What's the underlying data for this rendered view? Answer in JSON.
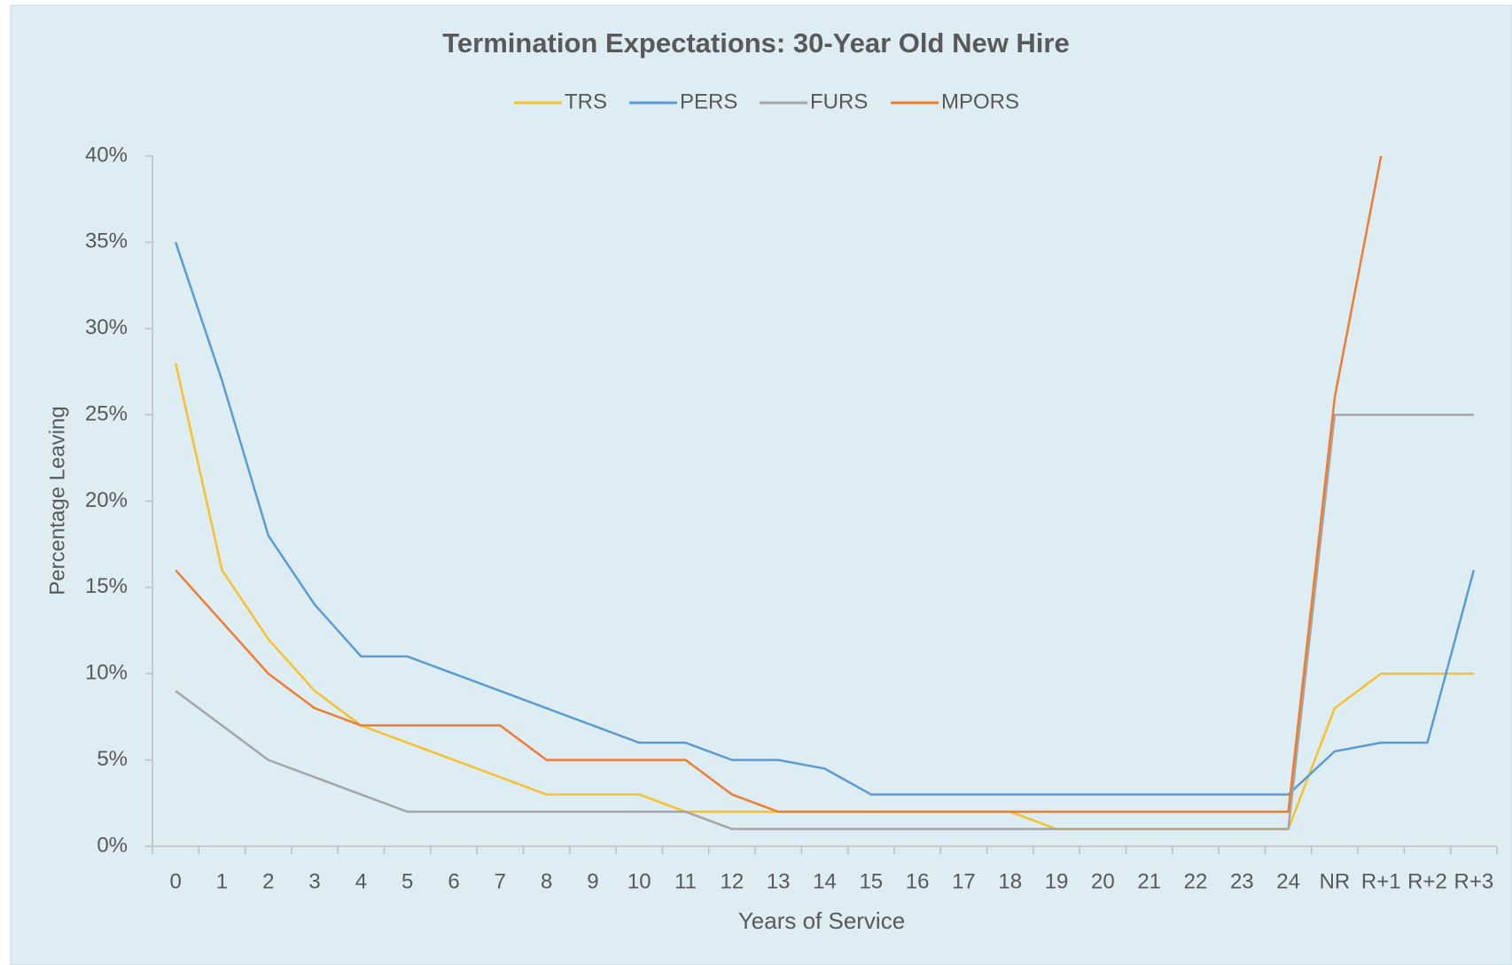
{
  "chart_data": {
    "type": "line",
    "title": "Termination Expectations:  30-Year Old New Hire",
    "x_label": "Years of Service",
    "y_label": "Percentage Leaving",
    "categories": [
      "0",
      "1",
      "2",
      "3",
      "4",
      "5",
      "6",
      "7",
      "8",
      "9",
      "10",
      "11",
      "12",
      "13",
      "14",
      "15",
      "16",
      "17",
      "18",
      "19",
      "20",
      "21",
      "22",
      "23",
      "24",
      "NR",
      "R+1",
      "R+2",
      "R+3"
    ],
    "series": [
      {
        "name": "TRS",
        "color": "#f5c12e",
        "values": [
          28,
          16,
          12,
          9,
          7,
          6,
          5,
          4,
          3,
          3,
          3,
          2,
          2,
          2,
          2,
          2,
          2,
          2,
          2,
          1,
          1,
          1,
          1,
          1,
          1,
          8,
          10,
          10,
          10
        ]
      },
      {
        "name": "PERS",
        "color": "#5b9bd5",
        "values": [
          35,
          27,
          18,
          14,
          11,
          11,
          10,
          9,
          8,
          7,
          6,
          6,
          5,
          5,
          4.5,
          3,
          3,
          3,
          3,
          3,
          3,
          3,
          3,
          3,
          3,
          5.5,
          6,
          6,
          16
        ]
      },
      {
        "name": "FURS",
        "color": "#a5a5a5",
        "values": [
          9,
          7,
          5,
          4,
          3,
          2,
          2,
          2,
          2,
          2,
          2,
          2,
          1,
          1,
          1,
          1,
          1,
          1,
          1,
          1,
          1,
          1,
          1,
          1,
          1,
          25,
          25,
          25,
          25
        ]
      },
      {
        "name": "MPORS",
        "color": "#ed7d31",
        "values": [
          16,
          13,
          10,
          8,
          7,
          7,
          7,
          7,
          5,
          5,
          5,
          5,
          3,
          2,
          2,
          2,
          2,
          2,
          2,
          2,
          2,
          2,
          2,
          2,
          2,
          26,
          40,
          null,
          null
        ]
      }
    ],
    "ylim": [
      0,
      40
    ],
    "yticks": [
      {
        "value": 0,
        "label": "0%"
      },
      {
        "value": 5,
        "label": "5%"
      },
      {
        "value": 10,
        "label": "10%"
      },
      {
        "value": 15,
        "label": "15%"
      },
      {
        "value": 20,
        "label": "20%"
      },
      {
        "value": 25,
        "label": "25%"
      },
      {
        "value": 30,
        "label": "30%"
      },
      {
        "value": 35,
        "label": "35%"
      },
      {
        "value": 40,
        "label": "40%"
      }
    ],
    "legend": "top",
    "grid": false
  }
}
